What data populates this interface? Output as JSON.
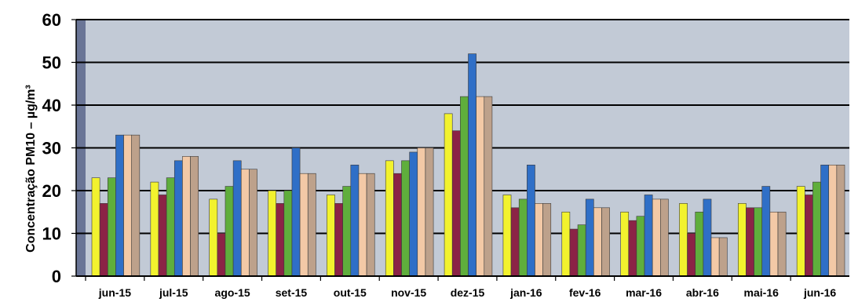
{
  "chart_data": {
    "type": "bar",
    "title": "",
    "xlabel": "",
    "ylabel": "Concentração PM10 – µg/m³",
    "ylim": [
      0,
      60
    ],
    "yticks": [
      0,
      10,
      20,
      30,
      40,
      50,
      60
    ],
    "grid": true,
    "legend": "none",
    "categories": [
      "jun-15",
      "jul-15",
      "ago-15",
      "set-15",
      "out-15",
      "nov-15",
      "dez-15",
      "jan-16",
      "fev-16",
      "mar-16",
      "abr-16",
      "mai-16",
      "jun-16"
    ],
    "series": [
      {
        "color": "#f2f22e",
        "values": [
          23,
          22,
          18,
          20,
          19,
          27,
          38,
          19,
          15,
          15,
          17,
          17,
          21
        ]
      },
      {
        "color": "#8b2346",
        "values": [
          17,
          19,
          10,
          17,
          17,
          24,
          34,
          16,
          11,
          13,
          10,
          16,
          19
        ]
      },
      {
        "color": "#5fae3c",
        "values": [
          23,
          23,
          21,
          20,
          21,
          27,
          42,
          18,
          12,
          14,
          15,
          16,
          22
        ]
      },
      {
        "color": "#2f6fc7",
        "values": [
          33,
          27,
          27,
          30,
          26,
          29,
          52,
          26,
          18,
          19,
          18,
          21,
          26
        ]
      },
      {
        "color": "#f3c9a6",
        "values": [
          33,
          28,
          25,
          24,
          24,
          30,
          42,
          17,
          16,
          18,
          9,
          15,
          26
        ]
      },
      {
        "color": "#bda18b",
        "values": [
          33,
          28,
          25,
          24,
          24,
          30,
          42,
          17,
          16,
          18,
          9,
          15,
          26
        ]
      }
    ]
  },
  "colors": {
    "plot_background": "#c2cad6",
    "left_wall": "#6a7596",
    "grid": "#000000"
  }
}
